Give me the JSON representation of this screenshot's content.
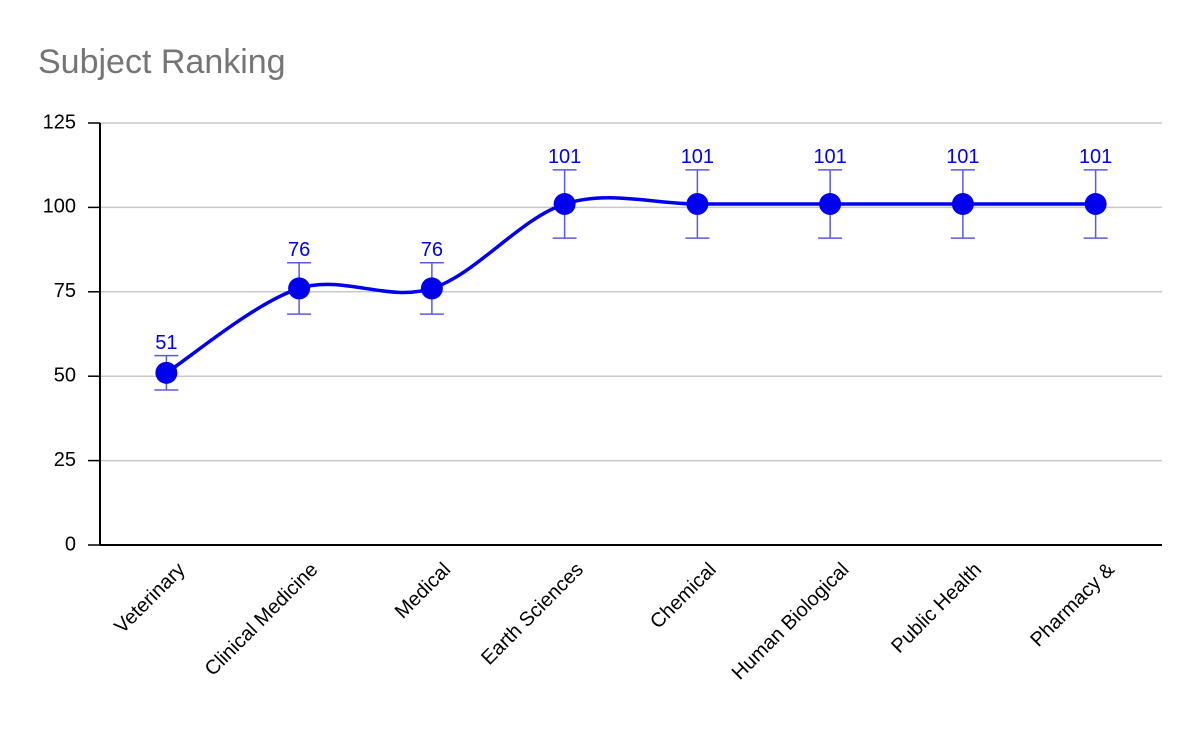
{
  "chart_data": {
    "type": "line",
    "title": "Subject Ranking",
    "categories": [
      "Veterinary",
      "Clinical Medicine",
      "Medical",
      "Earth Sciences",
      "Chemical",
      "Human Biological",
      "Public Health",
      "Pharmacy &"
    ],
    "values": [
      51,
      76,
      76,
      101,
      101,
      101,
      101,
      101
    ],
    "errors": [
      5.1,
      7.6,
      7.6,
      10.1,
      10.1,
      10.1,
      10.1,
      10.1
    ],
    "color": "#0000ee",
    "error_color": "#5a5ae6",
    "ylim": [
      0,
      125
    ],
    "yticks": [
      0,
      25,
      50,
      75,
      100,
      125
    ],
    "grid": true,
    "smooth": true
  }
}
